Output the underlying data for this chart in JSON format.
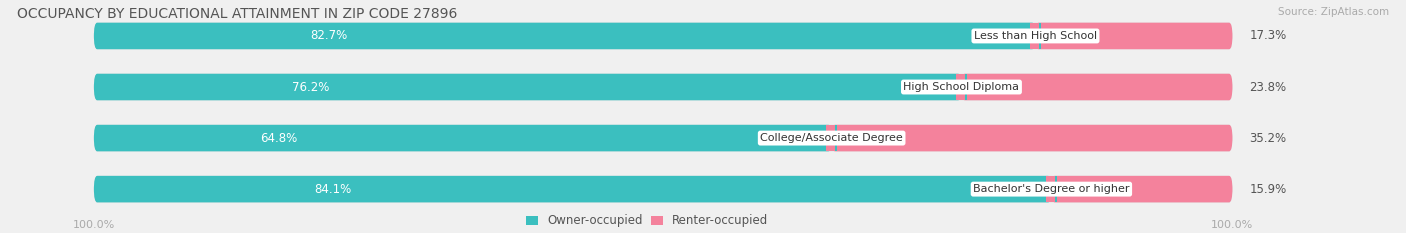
{
  "title": "OCCUPANCY BY EDUCATIONAL ATTAINMENT IN ZIP CODE 27896",
  "source": "Source: ZipAtlas.com",
  "categories": [
    "Less than High School",
    "High School Diploma",
    "College/Associate Degree",
    "Bachelor's Degree or higher"
  ],
  "owner_pct": [
    82.7,
    76.2,
    64.8,
    84.1
  ],
  "renter_pct": [
    17.3,
    23.8,
    35.2,
    15.9
  ],
  "owner_color": "#3bbfbf",
  "renter_color": "#f4829c",
  "bar_bg_color": "#dcdcdc",
  "axis_label_color": "#aaaaaa",
  "title_color": "#555555",
  "source_color": "#aaaaaa",
  "fig_bg_color": "#f0f0f0",
  "bar_height": 0.52,
  "left_label": "100.0%",
  "right_label": "100.0%"
}
